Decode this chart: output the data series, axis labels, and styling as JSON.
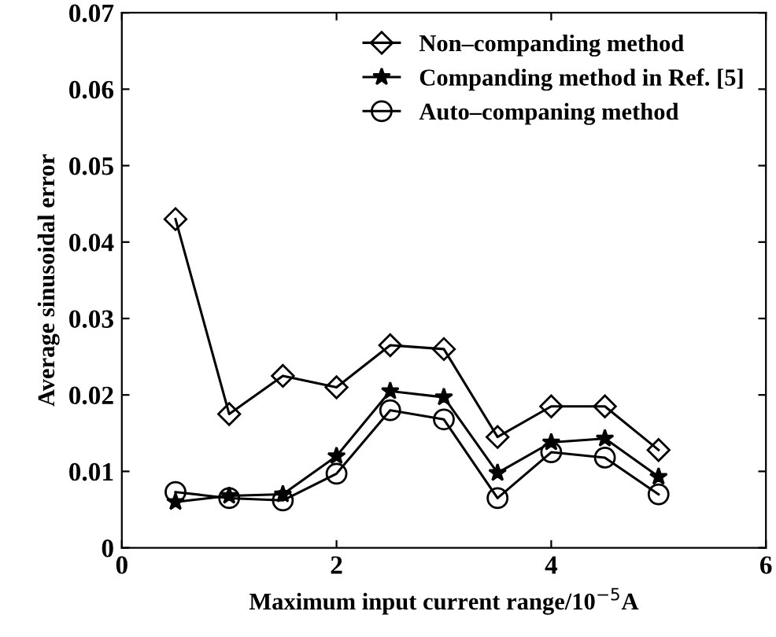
{
  "chart_data": {
    "type": "line",
    "xlabel": "Maximum input current range/10$^{−5}$A",
    "ylabel": "Average sinusoidal error",
    "x": [
      0.5,
      1,
      1.5,
      2,
      2.5,
      3,
      3.5,
      4,
      4.5,
      5
    ],
    "series": [
      {
        "name": "Non–companding method",
        "color": "#000000",
        "marker": "diamond",
        "values": [
          0.043,
          0.0175,
          0.0225,
          0.021,
          0.0265,
          0.026,
          0.0145,
          0.0185,
          0.0185,
          0.0128
        ]
      },
      {
        "name": "Companding method in Ref. [5]",
        "color": "#000000",
        "marker": "star",
        "values": [
          0.006,
          0.0068,
          0.007,
          0.012,
          0.0205,
          0.0197,
          0.0098,
          0.0138,
          0.0143,
          0.0093
        ]
      },
      {
        "name": "Auto–companing method",
        "color": "#000000",
        "marker": "circle",
        "values": [
          0.0073,
          0.0065,
          0.0062,
          0.0097,
          0.018,
          0.0168,
          0.0065,
          0.0125,
          0.0118,
          0.007
        ]
      }
    ],
    "xlim": [
      0,
      6
    ],
    "xticks": [
      0,
      2,
      4,
      6
    ],
    "ylim": [
      0,
      0.07
    ],
    "yticks": [
      0,
      0.01,
      0.02,
      0.03,
      0.04,
      0.05,
      0.06,
      0.07
    ],
    "legend": "top right",
    "grid": false,
    "line_style": "solid"
  }
}
